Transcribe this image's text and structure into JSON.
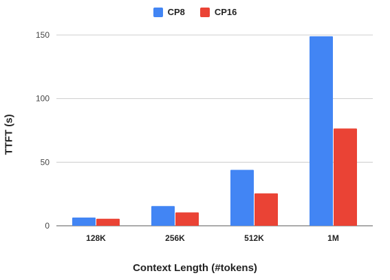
{
  "chart_data": {
    "type": "bar",
    "categories": [
      "128K",
      "256K",
      "512K",
      "1M"
    ],
    "series": [
      {
        "name": "CP8",
        "color": "#4285f4",
        "values": [
          6.5,
          15.5,
          44,
          149
        ]
      },
      {
        "name": "CP16",
        "color": "#ea4335",
        "values": [
          5.5,
          10.5,
          25.5,
          76.5
        ]
      }
    ],
    "title": "",
    "xlabel": "Context Length (#tokens)",
    "ylabel": "TTFT (s)",
    "ylim": [
      0,
      150
    ],
    "yticks": [
      "0",
      "50",
      "100",
      "150"
    ],
    "grid": true,
    "legend_position": "top-center"
  }
}
